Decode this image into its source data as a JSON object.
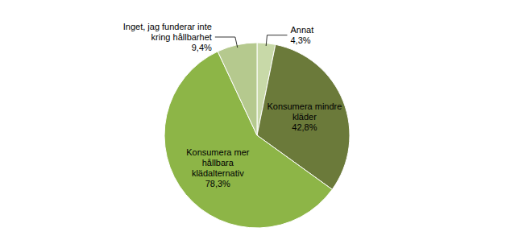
{
  "chart_data": {
    "type": "pie",
    "categories": [
      "Annat",
      "Konsumera mindre\nkläder",
      "Konsumera mer\nhållbara\nklädalternativ",
      "Inget, jag funderar inte\nkring hållbarhet"
    ],
    "values": [
      4.3,
      42.8,
      78.3,
      9.4
    ],
    "value_labels": [
      "4,3%",
      "42,8%",
      "78,3%",
      "9,4%"
    ],
    "colors": [
      "#c8d9a8",
      "#6b7a3a",
      "#8db547",
      "#b5c98e"
    ],
    "data_labels": true
  }
}
